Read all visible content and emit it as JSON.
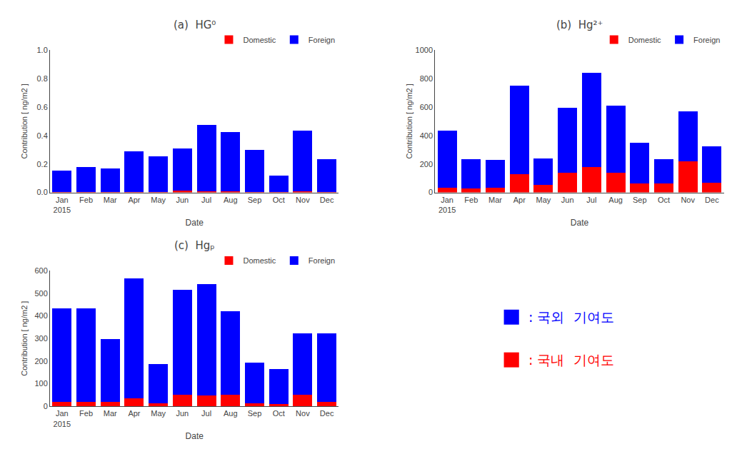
{
  "chart_data": [
    {
      "type": "bar",
      "stacked": true,
      "title": "(a)  HG⁰",
      "xlabel": "Date",
      "ylabel": "Contribution [ ng/m2 ]",
      "categories": [
        "Jan\n2015",
        "Feb",
        "Mar",
        "Apr",
        "May",
        "Jun",
        "Jul",
        "Aug",
        "Sep",
        "Oct",
        "Nov",
        "Dec"
      ],
      "series": [
        {
          "name": "Domestic",
          "color": "#FF0000",
          "values": [
            0.002,
            0.002,
            0.002,
            0.005,
            0.003,
            0.012,
            0.01,
            0.008,
            0.003,
            0.002,
            0.008,
            0.002
          ]
        },
        {
          "name": "Foreign",
          "color": "#0000FF",
          "values": [
            0.15,
            0.175,
            0.165,
            0.285,
            0.25,
            0.295,
            0.465,
            0.415,
            0.295,
            0.115,
            0.425,
            0.23
          ]
        }
      ],
      "ylim": [
        0,
        1.0
      ],
      "yticks": [
        {
          "value": 0,
          "label": "0.0"
        },
        0.2,
        0.4,
        0.6,
        0.8,
        {
          "value": 1,
          "label": "1.0"
        }
      ],
      "grid": false,
      "legend": "top right"
    },
    {
      "type": "bar",
      "stacked": true,
      "title": "(b)  Hg²⁺",
      "xlabel": "Date",
      "ylabel": "Contribution [ ng/m2 ]",
      "categories": [
        "Jan\n2015",
        "Feb",
        "Mar",
        "Apr",
        "May",
        "Jun",
        "Jul",
        "Aug",
        "Sep",
        "Oct",
        "Nov",
        "Dec"
      ],
      "series": [
        {
          "name": "Domestic",
          "color": "#FF0000",
          "values": [
            35,
            30,
            35,
            130,
            55,
            140,
            180,
            140,
            65,
            65,
            220,
            70
          ]
        },
        {
          "name": "Foreign",
          "color": "#0000FF",
          "values": [
            400,
            205,
            195,
            620,
            185,
            455,
            660,
            470,
            285,
            170,
            350,
            255
          ]
        }
      ],
      "ylim": [
        0,
        1000
      ],
      "yticks": [
        0,
        200,
        400,
        600,
        800,
        1000
      ],
      "grid": false,
      "legend": "top right"
    },
    {
      "type": "bar",
      "stacked": true,
      "title": "(c)  Hgₚ",
      "xlabel": "Date",
      "ylabel": "Contribution [ ng/m2 ]",
      "categories": [
        "Jan\n2015",
        "Feb",
        "Mar",
        "Apr",
        "May",
        "Jun",
        "Jul",
        "Aug",
        "Sep",
        "Oct",
        "Nov",
        "Dec"
      ],
      "series": [
        {
          "name": "Domestic",
          "color": "#FF0000",
          "values": [
            18,
            18,
            18,
            35,
            12,
            50,
            47,
            52,
            12,
            8,
            52,
            18
          ]
        },
        {
          "name": "Foreign",
          "color": "#0000FF",
          "values": [
            415,
            415,
            280,
            530,
            175,
            465,
            495,
            370,
            180,
            155,
            270,
            305
          ]
        }
      ],
      "ylim": [
        0,
        600
      ],
      "yticks": [
        0,
        100,
        200,
        300,
        400,
        500,
        600
      ],
      "grid": false,
      "legend": "top right"
    }
  ],
  "annotations": [
    {
      "text": ": 국외  기여도",
      "color": "#0000FF"
    },
    {
      "text": ": 국내  기여도",
      "color": "#FF0000"
    }
  ]
}
